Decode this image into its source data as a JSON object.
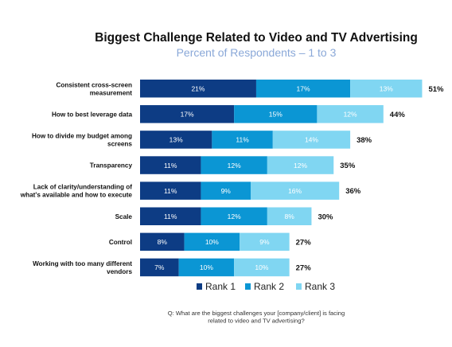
{
  "chart_data": {
    "type": "bar",
    "orientation": "horizontal",
    "stacked": true,
    "title": "Biggest Challenge Related to Video and TV Advertising",
    "subtitle": "Percent of Respondents – 1 to 3",
    "categories": [
      "Consistent cross-screen measurement",
      "How to best leverage data",
      "How to divide my budget among screens",
      "Transparency",
      "Lack of clarity/understanding of what's available and how to execute",
      "Scale",
      "Control",
      "Working with too many different vendors"
    ],
    "category_lines": [
      [
        "Consistent cross-screen",
        "measurement"
      ],
      [
        "How to best leverage data"
      ],
      [
        "How to divide my budget among",
        "screens"
      ],
      [
        "Transparency"
      ],
      [
        "Lack of clarity/understanding of",
        "what's available and how to execute"
      ],
      [
        "Scale"
      ],
      [
        "Control"
      ],
      [
        "Working with too many different",
        "vendors"
      ]
    ],
    "series": [
      {
        "name": "Rank 1",
        "color": "#0d3c84",
        "values": [
          21,
          17,
          13,
          11,
          11,
          11,
          8,
          7
        ]
      },
      {
        "name": "Rank 2",
        "color": "#0b96d4",
        "values": [
          17,
          15,
          11,
          12,
          9,
          12,
          10,
          10
        ]
      },
      {
        "name": "Rank 3",
        "color": "#80d6f2",
        "values": [
          13,
          12,
          14,
          12,
          16,
          8,
          9,
          10
        ]
      }
    ],
    "totals": [
      51,
      44,
      38,
      35,
      36,
      30,
      27,
      27
    ],
    "value_suffix": "%",
    "legend_position": "bottom",
    "grid": false,
    "footnote_lines": [
      "Q: What are the biggest challenges your [company/client] is facing",
      "related to video and TV advertising?"
    ],
    "colors": {
      "title": "#111111",
      "subtitle": "#8aa8d8",
      "label": "#111111",
      "inner_label": "#ffffff",
      "footnote": "#333333"
    }
  }
}
